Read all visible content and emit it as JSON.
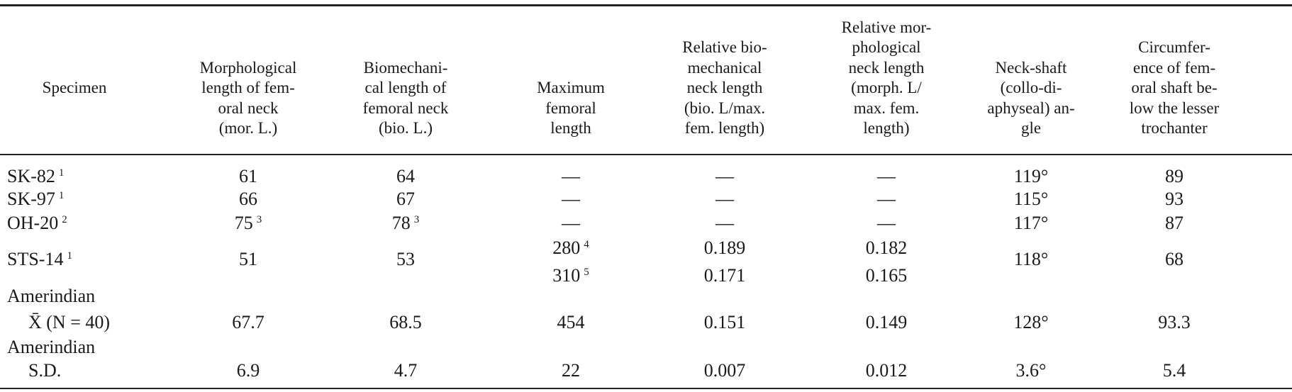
{
  "table": {
    "headers": [
      [
        "Specimen"
      ],
      [
        "Morphological",
        "length of fem-",
        "oral neck",
        "(mor. L.)"
      ],
      [
        "Biomechani-",
        "cal length of",
        "femoral neck",
        "(bio. L.)"
      ],
      [
        "Maximum",
        "femoral",
        "length"
      ],
      [
        "Relative bio-",
        "mechanical",
        "neck length",
        "(bio. L/max.",
        "fem. length)"
      ],
      [
        "Relative mor-",
        "phological",
        "neck length",
        "(morph. L/",
        "max. fem.",
        "length)"
      ],
      [
        "Neck-shaft",
        "(collo-di-",
        "aphyseal) an-",
        "gle"
      ],
      [
        "Circumfer-",
        "ence of fem-",
        "oral shaft be-",
        "low the lesser",
        "trochanter"
      ]
    ],
    "rows": [
      [
        [
          {
            "text": "SK-82",
            "note": "1"
          }
        ],
        [
          "61"
        ],
        [
          "64"
        ],
        [
          "—"
        ],
        [
          "—"
        ],
        [
          "—"
        ],
        [
          "119°"
        ],
        [
          "89"
        ]
      ],
      [
        [
          {
            "text": "SK-97",
            "note": "1"
          }
        ],
        [
          "66"
        ],
        [
          "67"
        ],
        [
          "—"
        ],
        [
          "—"
        ],
        [
          "—"
        ],
        [
          "115°"
        ],
        [
          "93"
        ]
      ],
      [
        [
          {
            "text": "OH-20",
            "note": "2"
          }
        ],
        [
          {
            "text": "75",
            "note": "3"
          }
        ],
        [
          {
            "text": "78",
            "note": "3"
          }
        ],
        [
          "—"
        ],
        [
          "—"
        ],
        [
          "—"
        ],
        [
          "117°"
        ],
        [
          "87"
        ]
      ],
      [
        [
          {
            "text": "STS-14",
            "note": "1"
          }
        ],
        [
          "51"
        ],
        [
          "53"
        ],
        [
          {
            "text": "280",
            "note": "4"
          },
          {
            "text": "310",
            "note": "5"
          }
        ],
        [
          "0.189",
          "0.171"
        ],
        [
          "0.182",
          "0.165"
        ],
        [
          "118°"
        ],
        [
          "68"
        ]
      ],
      [
        [
          "Amerindian",
          "X̄ (N = 40)"
        ],
        [
          "67.7"
        ],
        [
          "68.5"
        ],
        [
          "454"
        ],
        [
          "0.151"
        ],
        [
          "0.149"
        ],
        [
          "128°"
        ],
        [
          "93.3"
        ]
      ],
      [
        [
          "Amerindian",
          "S.D."
        ],
        [
          "6.9"
        ],
        [
          "4.7"
        ],
        [
          "22"
        ],
        [
          "0.007"
        ],
        [
          "0.012"
        ],
        [
          "3.6°"
        ],
        [
          "5.4"
        ]
      ]
    ]
  }
}
